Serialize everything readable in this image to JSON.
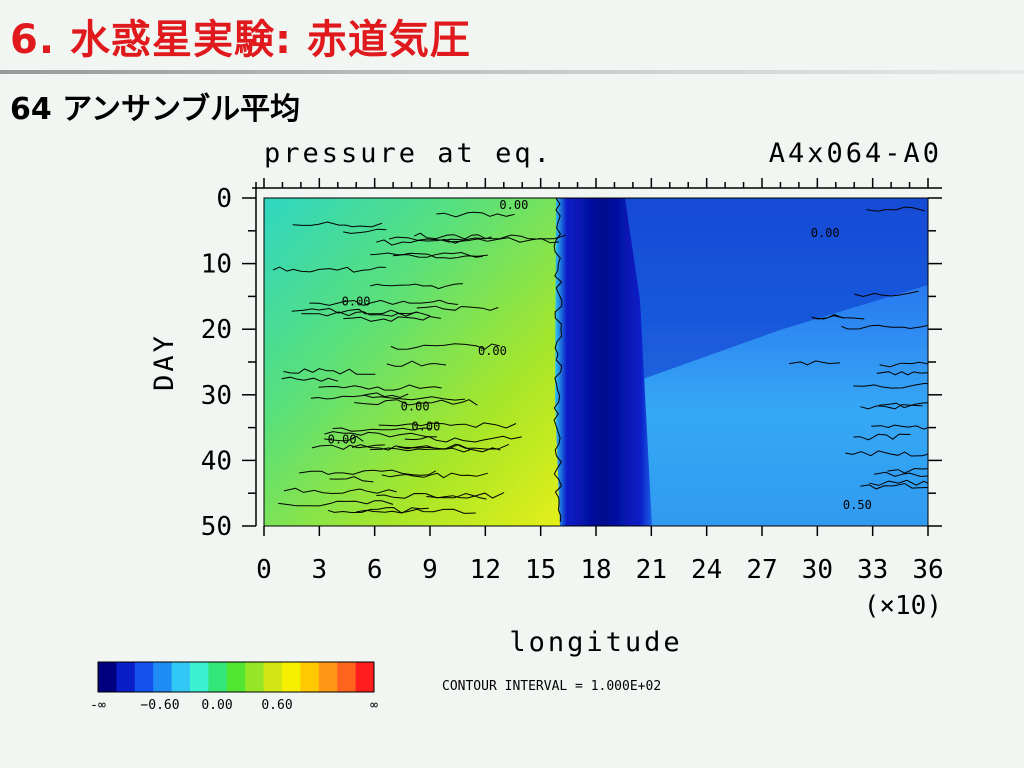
{
  "slide": {
    "title": "6. 水惑星実験: 赤道気圧",
    "subtitle": "64 アンサンブル平均"
  },
  "chart_data": {
    "type": "heatmap",
    "title": "pressure at eq.",
    "title_right": "A4x064-A0",
    "xlabel": "longitude",
    "x_scale_label": "(×10)",
    "ylabel": "DAY",
    "xlim": [
      0,
      36
    ],
    "ylim": [
      0,
      50
    ],
    "y_reversed": true,
    "x_ticks": [
      "0",
      "3",
      "6",
      "9",
      "12",
      "15",
      "18",
      "21",
      "24",
      "27",
      "30",
      "33",
      "36"
    ],
    "y_ticks": [
      "0",
      "10",
      "20",
      "30",
      "40",
      "50"
    ],
    "contour_interval_label": "CONTOUR INTERVAL = 1.000E+02",
    "contour_labels": [
      {
        "text": "0.00",
        "x": 21.0,
        "y": 0.8
      },
      {
        "text": "0.00",
        "x": 50.0,
        "y": 5.0
      },
      {
        "text": "0.00",
        "x": 6.3,
        "y": 15.5
      },
      {
        "text": "0.00",
        "x": 19.0,
        "y": 23.0
      },
      {
        "text": "0.00",
        "x": 11.8,
        "y": 31.5
      },
      {
        "text": "0.00",
        "x": 12.8,
        "y": 34.5
      },
      {
        "text": "0.00",
        "x": 5.0,
        "y": 36.5
      },
      {
        "text": "0.50",
        "x": 53.0,
        "y": 46.5
      }
    ],
    "colorbar": {
      "colors": [
        "#00007f",
        "#0a1ec8",
        "#1452f0",
        "#1e8cf5",
        "#32c8f5",
        "#3cf0d2",
        "#32e678",
        "#50e632",
        "#96e628",
        "#d2e614",
        "#f5f000",
        "#ffc800",
        "#ff9614",
        "#ff641e",
        "#ff1e1e"
      ],
      "labels": [
        "-∞",
        "−0.60",
        "0.00",
        "0.60",
        "∞"
      ]
    },
    "field_description_regions": [
      {
        "name": "west-green-yellow",
        "x_range": [
          0,
          16
        ],
        "trend": "yellow increasing with day"
      },
      {
        "name": "dark-blue-band",
        "x_range": [
          16.5,
          20
        ],
        "widening": "from 18 to 20 by day 50"
      },
      {
        "name": "east-blue",
        "x_range": [
          20,
          36
        ],
        "trend": "darker near day 5-20, lighter later"
      }
    ]
  }
}
